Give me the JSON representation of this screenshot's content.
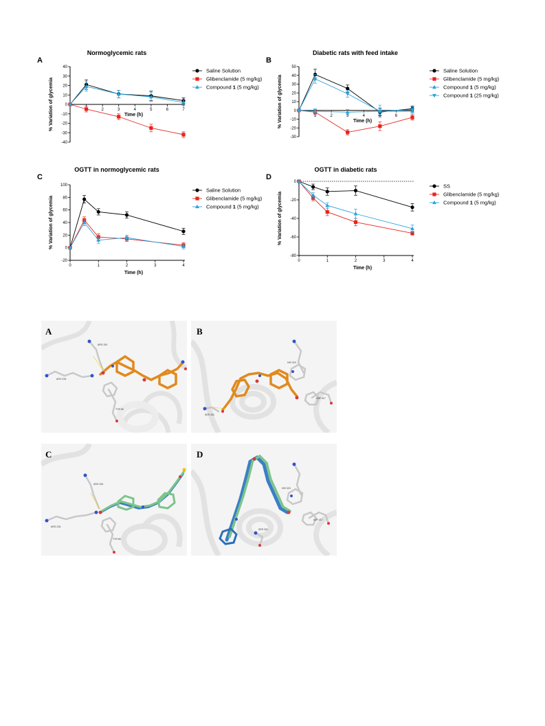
{
  "chart_data": [
    {
      "panel": "A",
      "type": "line",
      "title": "Normoglycemic rats",
      "xlabel": "Time (h)",
      "ylabel": "% Variation of glycemia",
      "xlim": [
        0,
        7
      ],
      "ylim": [
        -40,
        40
      ],
      "xticks": [
        "1",
        "2",
        "3",
        "4",
        "5",
        "6",
        "7"
      ],
      "yticks": [
        "40",
        "30",
        "20",
        "10",
        "0",
        "-10",
        "-20",
        "-30",
        "-40"
      ],
      "legend": [
        {
          "pre": "Saline Solution",
          "bold": "",
          "post": ""
        },
        {
          "pre": "Glibenclamide (5 mg/kg)",
          "bold": "",
          "post": ""
        },
        {
          "pre": "Compound ",
          "bold": "1",
          "post": " (5 mg/kg)"
        }
      ],
      "legend_position": "right",
      "series": [
        {
          "key": "saline",
          "color": "#000000",
          "marker": "circle",
          "x": [
            0,
            1,
            3,
            5,
            7
          ],
          "y": [
            0,
            21,
            11,
            9,
            4
          ],
          "err": [
            0,
            5,
            4,
            5,
            3
          ]
        },
        {
          "key": "gliben",
          "color": "#e8231b",
          "marker": "square",
          "x": [
            0,
            1,
            3,
            5,
            7
          ],
          "y": [
            0,
            -5,
            -13,
            -25,
            -32
          ],
          "err": [
            0,
            3,
            3,
            4,
            3
          ]
        },
        {
          "key": "comp1",
          "color": "#2aa3dc",
          "marker": "triangle",
          "x": [
            0,
            1,
            3,
            5,
            7
          ],
          "y": [
            0,
            19,
            11,
            8,
            2
          ],
          "err": [
            0,
            5,
            4,
            5,
            3
          ]
        }
      ]
    },
    {
      "panel": "B",
      "type": "line",
      "title": "Diabetic rats with feed intake",
      "xlabel": "Time (h)",
      "ylabel": "% Variation of glycemia",
      "xlim": [
        0,
        7
      ],
      "ylim": [
        -30,
        50
      ],
      "xticks": [
        "1",
        "2",
        "3",
        "4",
        "5",
        "6"
      ],
      "yticks": [
        "50",
        "40",
        "30",
        "20",
        "10",
        "0",
        "-10",
        "-20",
        "-30"
      ],
      "legend": [
        {
          "pre": "Saline Solution",
          "bold": "",
          "post": ""
        },
        {
          "pre": "Glibenclamide (5 mg/kg)",
          "bold": "",
          "post": ""
        },
        {
          "pre": "Compound ",
          "bold": "1",
          "post": " (5 mg/kg)"
        },
        {
          "pre": "Compound ",
          "bold": "1",
          "post": " (25 mg/kg)"
        }
      ],
      "legend_position": "right",
      "series": [
        {
          "key": "saline",
          "color": "#000000",
          "marker": "circle",
          "x": [
            0,
            1,
            3,
            5,
            7
          ],
          "y": [
            0,
            41,
            25,
            -2,
            2
          ],
          "err": [
            0,
            6,
            4,
            4,
            3
          ]
        },
        {
          "key": "gliben",
          "color": "#e8231b",
          "marker": "square",
          "x": [
            0,
            1,
            3,
            5,
            7
          ],
          "y": [
            0,
            -2,
            -25,
            -18,
            -8
          ],
          "err": [
            0,
            3,
            3,
            5,
            3
          ]
        },
        {
          "key": "comp1_5",
          "color": "#2aa3dc",
          "marker": "triangle",
          "x": [
            0,
            1,
            3,
            5,
            7
          ],
          "y": [
            0,
            -1,
            -2,
            -1,
            -1
          ],
          "err": [
            0,
            3,
            3,
            4,
            3
          ]
        },
        {
          "key": "comp1_25",
          "color": "#2aa3dc",
          "marker": "triangle-down",
          "x": [
            0,
            1,
            3,
            5,
            7
          ],
          "y": [
            0,
            36,
            19,
            -1,
            1
          ],
          "err": [
            0,
            5,
            4,
            7,
            3
          ]
        }
      ]
    },
    {
      "panel": "C",
      "type": "line",
      "title": "OGTT in normoglycemic rats",
      "xlabel": "Time (h)",
      "ylabel": "% Variation of glycemia",
      "xlim": [
        0,
        4
      ],
      "ylim": [
        -20,
        100
      ],
      "xticks": [
        "0",
        "1",
        "2",
        "3",
        "4"
      ],
      "yticks": [
        "100",
        "80",
        "60",
        "40",
        "20",
        "0",
        "-20"
      ],
      "legend": [
        {
          "pre": "Saline Solution",
          "bold": "",
          "post": ""
        },
        {
          "pre": "Glibenclamide (5 mg/kg)",
          "bold": "",
          "post": ""
        },
        {
          "pre": "Compound ",
          "bold": "1",
          "post": " (5 mg/kg)"
        }
      ],
      "legend_position": "right",
      "series": [
        {
          "key": "saline",
          "color": "#000000",
          "marker": "circle",
          "x": [
            0,
            0.5,
            1,
            2,
            4
          ],
          "y": [
            0,
            77,
            57,
            52,
            26
          ],
          "err": [
            0,
            6,
            5,
            5,
            5
          ]
        },
        {
          "key": "gliben",
          "color": "#e8231b",
          "marker": "square",
          "x": [
            0,
            0.5,
            1,
            2,
            4
          ],
          "y": [
            0,
            44,
            17,
            14,
            4
          ],
          "err": [
            0,
            5,
            5,
            4,
            4
          ]
        },
        {
          "key": "comp1",
          "color": "#2aa3dc",
          "marker": "triangle",
          "x": [
            0,
            0.5,
            1,
            2,
            4
          ],
          "y": [
            0,
            40,
            12,
            16,
            2
          ],
          "err": [
            0,
            5,
            5,
            4,
            4
          ]
        }
      ]
    },
    {
      "panel": "D",
      "type": "line",
      "title": "OGTT in diabetic rats",
      "xlabel": "Time (h)",
      "ylabel": "% Variation of glycemia",
      "xlim": [
        0,
        4
      ],
      "ylim": [
        -80,
        0
      ],
      "xticks": [
        "0",
        "1",
        "2",
        "3",
        "4"
      ],
      "yticks": [
        "0",
        "-20",
        "-40",
        "-60",
        "-80"
      ],
      "legend": [
        {
          "pre": "SS",
          "bold": "",
          "post": ""
        },
        {
          "pre": "Glibenclamide (5 mg/kg)",
          "bold": "",
          "post": ""
        },
        {
          "pre": "Compound ",
          "bold": "1",
          "post": " (5 mg/kg)"
        }
      ],
      "legend_position": "right",
      "series": [
        {
          "key": "ss",
          "color": "#000000",
          "marker": "circle",
          "x": [
            0,
            0.5,
            1,
            2,
            4
          ],
          "y": [
            0,
            -6,
            -11,
            -10,
            -28
          ],
          "err": [
            0,
            3,
            4,
            5,
            4
          ]
        },
        {
          "key": "gliben",
          "color": "#e8231b",
          "marker": "square",
          "x": [
            0,
            0.5,
            1,
            2,
            4
          ],
          "y": [
            0,
            -18,
            -33,
            -44,
            -56
          ],
          "err": [
            0,
            3,
            4,
            4,
            2
          ]
        },
        {
          "key": "comp1",
          "color": "#2aa3dc",
          "marker": "triangle",
          "x": [
            0,
            0.5,
            1,
            2,
            4
          ],
          "y": [
            0,
            -15,
            -26,
            -35,
            -51
          ],
          "err": [
            0,
            3,
            3,
            5,
            4
          ]
        }
      ]
    }
  ],
  "docking": {
    "letters": [
      "A",
      "B",
      "C",
      "D"
    ],
    "labels": {
      "A": [
        "ARG 181",
        "ARG 234",
        "TYR 80"
      ],
      "B": [
        "HIS 323",
        "SER 331",
        "ASP 417"
      ],
      "C": [
        "ARG 181",
        "ARG 234",
        "TYR 80"
      ],
      "D": [
        "HIS 323",
        "SER 331",
        "ASP 417"
      ]
    },
    "colors": {
      "ligand_orange": "#e08a1e",
      "ligand_green": "#7cc48a",
      "ligand_blue": "#3b7fc4",
      "oxygen": "#d83a3a",
      "nitrogen": "#2f54c9",
      "protein": "#e4e4e4"
    }
  }
}
